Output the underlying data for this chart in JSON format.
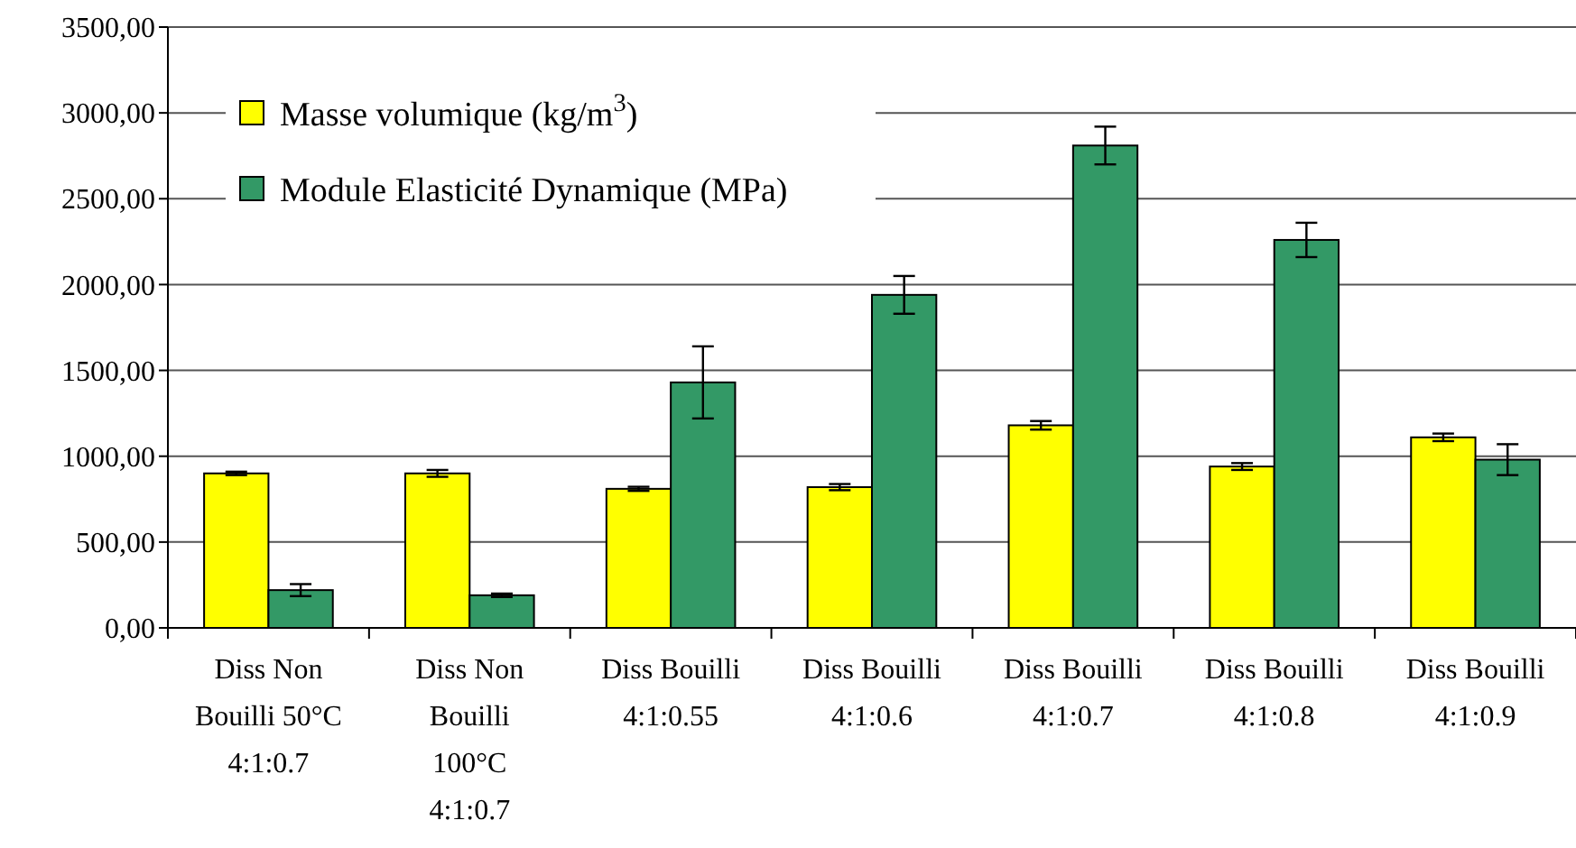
{
  "chart_data": {
    "type": "bar",
    "categories": [
      "Diss Non\nBouilli 50°C\n4:1:0.7",
      "Diss Non\nBouilli\n100°C\n4:1:0.7",
      "Diss Bouilli\n4:1:0.55",
      "Diss Bouilli\n4:1:0.6",
      "Diss Bouilli\n4:1:0.7",
      "Diss Bouilli\n4:1:0.8",
      "Diss Bouilli\n4:1:0.9"
    ],
    "series": [
      {
        "name": "Masse volumique (kg/m$^{3}$)",
        "color": "#ffff00",
        "values": [
          900,
          900,
          810,
          820,
          1180,
          940,
          1110
        ],
        "errors": [
          10,
          20,
          12,
          18,
          25,
          20,
          22
        ]
      },
      {
        "name": "Module Elasticité Dynamique (MPa)",
        "color": "#339966",
        "values": [
          220,
          190,
          1430,
          1940,
          2810,
          2260,
          980
        ],
        "errors": [
          35,
          10,
          210,
          110,
          110,
          100,
          90
        ]
      }
    ],
    "ylim": [
      0,
      3500
    ],
    "yticks": [
      {
        "value": 0,
        "label": "0,00"
      },
      {
        "value": 500,
        "label": "500,00"
      },
      {
        "value": 1000,
        "label": "1000,00"
      },
      {
        "value": 1500,
        "label": "1500,00"
      },
      {
        "value": 2000,
        "label": "2000,00"
      },
      {
        "value": 2500,
        "label": "2500,00"
      },
      {
        "value": 3000,
        "label": "3000,00"
      },
      {
        "value": 3500,
        "label": "3500,00"
      }
    ],
    "grid": "y",
    "legend": "top left"
  }
}
